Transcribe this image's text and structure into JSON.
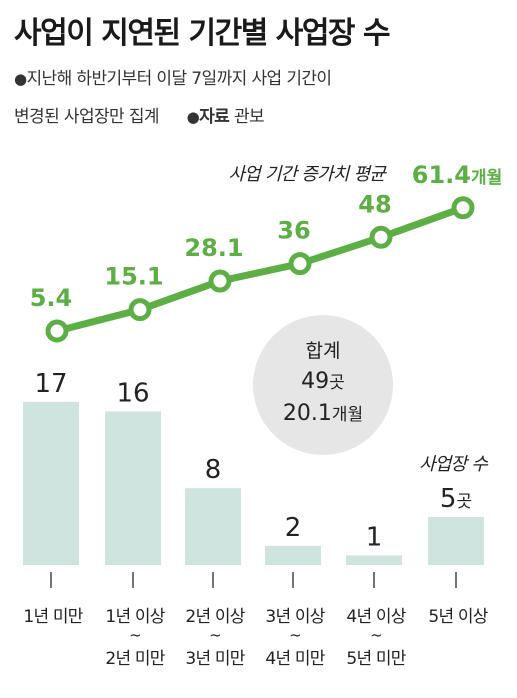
{
  "title": "사업이 지연된 기간별 사업장 수",
  "note": {
    "bullet": "●",
    "line1": "지난해 하반기부터 이달 7일까지 사업 기간이",
    "line2": "변경된 사업장만 집계",
    "source_bullet": "●",
    "source_label": "자료",
    "source_value": "관보"
  },
  "colors": {
    "line": "#5cae45",
    "bar": "#cfe3df",
    "circle": "#e6e6e6",
    "text": "#222222"
  },
  "chart_data": {
    "type": "bar+line",
    "categories": [
      [
        "1년 미만"
      ],
      [
        "1년 이상",
        "~",
        "2년 미만"
      ],
      [
        "2년 이상",
        "~",
        "3년 미만"
      ],
      [
        "3년 이상",
        "~",
        "4년 미만"
      ],
      [
        "4년 이상",
        "~",
        "5년 미만"
      ],
      [
        "5년 이상"
      ]
    ],
    "line_series": {
      "name": "사업 기간 증가치 평균",
      "unit": "개월",
      "values": [
        5.4,
        15.1,
        28.1,
        36,
        48,
        61.4
      ],
      "labels": [
        "5.4",
        "15.1",
        "28.1",
        "36",
        "48",
        "61.4"
      ]
    },
    "bar_series": {
      "name": "사업장 수",
      "unit": "곳",
      "values": [
        17,
        16,
        8,
        2,
        1,
        5
      ],
      "labels": [
        "17",
        "16",
        "8",
        "2",
        "1",
        "5"
      ]
    },
    "total": {
      "label": "합계",
      "count": "49",
      "count_unit": "곳",
      "months": "20.1",
      "months_unit": "개월"
    }
  }
}
